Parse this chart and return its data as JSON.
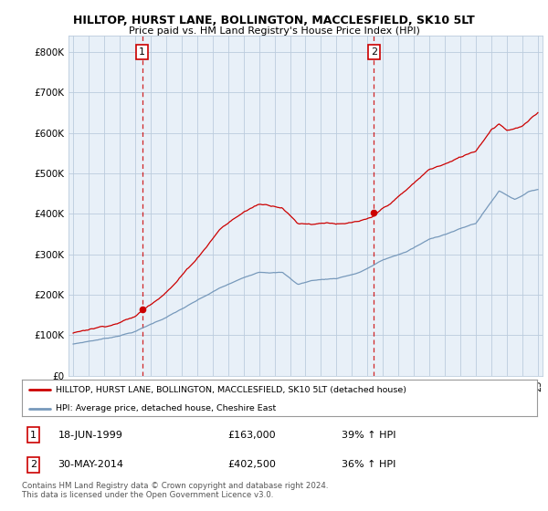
{
  "title": "HILLTOP, HURST LANE, BOLLINGTON, MACCLESFIELD, SK10 5LT",
  "subtitle": "Price paid vs. HM Land Registry's House Price Index (HPI)",
  "legend_line1": "HILLTOP, HURST LANE, BOLLINGTON, MACCLESFIELD, SK10 5LT (detached house)",
  "legend_line2": "HPI: Average price, detached house, Cheshire East",
  "annotation1_label": "1",
  "annotation1_date": "18-JUN-1999",
  "annotation1_price": "£163,000",
  "annotation1_hpi": "39% ↑ HPI",
  "annotation2_label": "2",
  "annotation2_date": "30-MAY-2014",
  "annotation2_price": "£402,500",
  "annotation2_hpi": "36% ↑ HPI",
  "footer": "Contains HM Land Registry data © Crown copyright and database right 2024.\nThis data is licensed under the Open Government Licence v3.0.",
  "red_color": "#cc0000",
  "blue_color": "#7799bb",
  "chart_bg": "#e8f0f8",
  "ylim": [
    0,
    840000
  ],
  "yticks": [
    0,
    100000,
    200000,
    300000,
    400000,
    500000,
    600000,
    700000,
    800000
  ],
  "ytick_labels": [
    "£0",
    "£100K",
    "£200K",
    "£300K",
    "£400K",
    "£500K",
    "£600K",
    "£700K",
    "£800K"
  ],
  "sale1_x": 1999.46,
  "sale1_y": 163000,
  "sale2_x": 2014.41,
  "sale2_y": 402500,
  "background_color": "#ffffff",
  "grid_color": "#bbccdd",
  "xlim_left": 1994.7,
  "xlim_right": 2025.3
}
